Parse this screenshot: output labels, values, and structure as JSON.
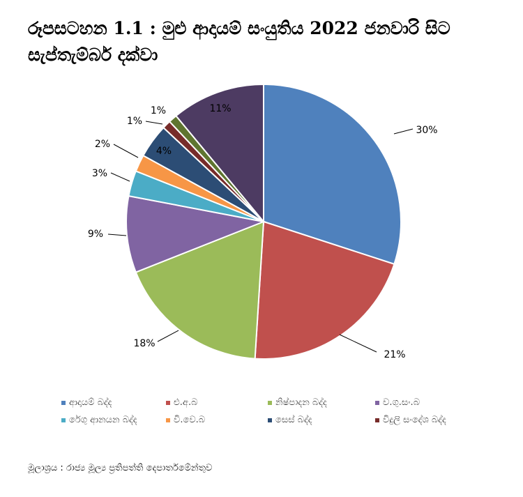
{
  "title": "රූපසටහන 1.1 : මුළු ආදායම් සංයුතිය 2022 ජනවාරි සිට සැප්තැම්බර් දක්වා",
  "source": "මූලාශ්‍රය : රාජ්‍ය මූල්‍ය ප්‍රතිපත්ති දෙපාර්තමේන්තුව",
  "chart_data": {
    "type": "pie",
    "title": "රූපසටහන 1.1 : මුළු ආදායම් සංයුතිය 2022 ජනවාරි සිට සැප්තැම්බර් දක්වා",
    "legend_position": "bottom",
    "slices": [
      {
        "label": "ආදායම් බද්ද",
        "value": 30,
        "display": "30%",
        "color": "#4F81BD"
      },
      {
        "label": "එ.අ.බ",
        "value": 21,
        "display": "21%",
        "color": "#C0504D"
      },
      {
        "label": "නිෂ්පාදන බද්ද",
        "value": 18,
        "display": "18%",
        "color": "#9BBB59"
      },
      {
        "label": "ව.ගු.සං.බ",
        "value": 9,
        "display": "9%",
        "color": "#8064A2"
      },
      {
        "label": "රේගු ආනයන බද්ද",
        "value": 3,
        "display": "3%",
        "color": "#4BACC6"
      },
      {
        "label": "වි.වෙ.බ",
        "value": 2,
        "display": "2%",
        "color": "#F79646"
      },
      {
        "label": "සෙස් බද්ද",
        "value": 4,
        "display": "4%",
        "color": "#2C4D75"
      },
      {
        "label": "විදුලි සංදේශ බද්ද",
        "value": 1,
        "display": "1%",
        "color": "#772C2A"
      },
      {
        "label": "",
        "value": 1,
        "display": "1%",
        "color": "#5F7530"
      },
      {
        "label": "",
        "value": 11,
        "display": "11%",
        "color": "#4D3B62"
      }
    ]
  }
}
